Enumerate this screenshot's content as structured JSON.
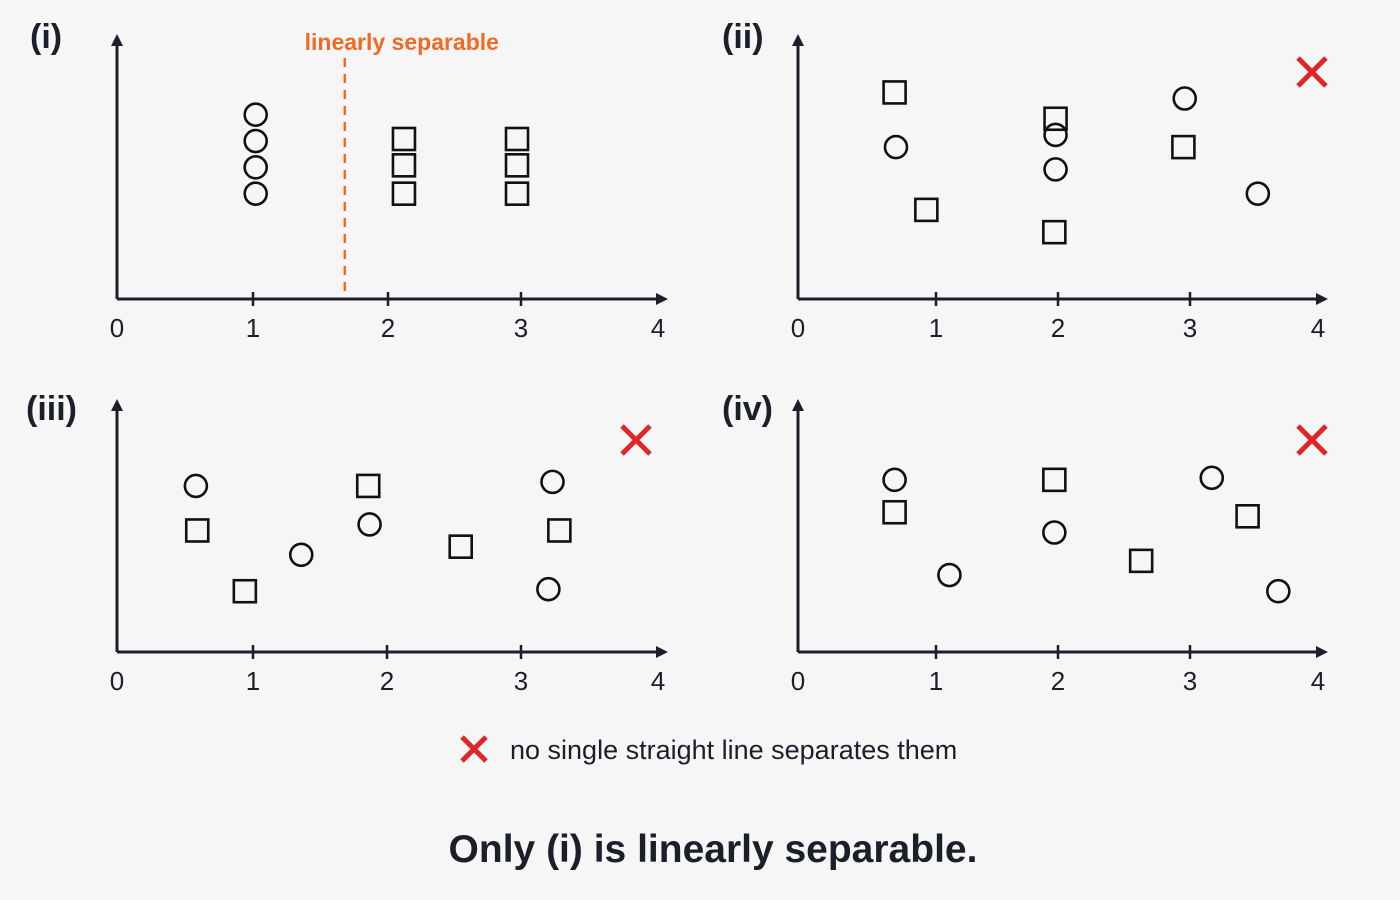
{
  "legend": {
    "symbol": "x-mark",
    "text": "no single straight line separates them"
  },
  "conclusion": "Only (i) is linearly separable.",
  "colors": {
    "axis": "#1b1f2a",
    "separator": "#f06a25",
    "not_separable": "#e0262b"
  },
  "chart_data": [
    {
      "type": "scatter",
      "panel": "(i)",
      "x_ticks": [
        "0",
        "1",
        "2",
        "3",
        "4"
      ],
      "xlim": [
        0,
        4
      ],
      "ylim": [
        0,
        5
      ],
      "separable": true,
      "separator": {
        "x": 1.68,
        "label": "linearly separable"
      },
      "series": [
        {
          "marker": "circle",
          "points": [
            [
              1.02,
              4.6
            ],
            [
              1.02,
              3.95
            ],
            [
              1.02,
              3.3
            ],
            [
              1.02,
              2.65
            ]
          ]
        },
        {
          "marker": "square",
          "points": [
            [
              2.12,
              4.0
            ],
            [
              2.12,
              3.35
            ],
            [
              2.12,
              2.65
            ],
            [
              2.97,
              4.0
            ],
            [
              2.97,
              3.35
            ],
            [
              2.97,
              2.65
            ]
          ]
        }
      ]
    },
    {
      "type": "scatter",
      "panel": "(ii)",
      "x_ticks": [
        "0",
        "1",
        "2",
        "3",
        "4"
      ],
      "xlim": [
        0,
        4
      ],
      "ylim": [
        0,
        5
      ],
      "separable": false,
      "series": [
        {
          "marker": "circle",
          "points": [
            [
              0.71,
              3.8
            ],
            [
              1.98,
              4.1
            ],
            [
              1.98,
              3.25
            ],
            [
              2.96,
              5.0
            ],
            [
              3.53,
              2.65
            ]
          ]
        },
        {
          "marker": "square",
          "points": [
            [
              0.7,
              5.15
            ],
            [
              0.93,
              2.25
            ],
            [
              1.98,
              4.5
            ],
            [
              1.97,
              1.7
            ],
            [
              2.95,
              3.8
            ]
          ]
        }
      ]
    },
    {
      "type": "scatter",
      "panel": "(iii)",
      "x_ticks": [
        "0",
        "1",
        "2",
        "3",
        "4"
      ],
      "xlim": [
        0,
        4
      ],
      "ylim": [
        0,
        5
      ],
      "separable": false,
      "series": [
        {
          "marker": "circle",
          "points": [
            [
              0.58,
              4.15
            ],
            [
              1.36,
              2.45
            ],
            [
              1.87,
              3.2
            ],
            [
              3.23,
              4.25
            ],
            [
              3.2,
              1.6
            ]
          ]
        },
        {
          "marker": "square",
          "points": [
            [
              0.59,
              3.05
            ],
            [
              0.94,
              1.55
            ],
            [
              1.86,
              4.15
            ],
            [
              2.55,
              2.65
            ],
            [
              3.28,
              3.05
            ]
          ]
        }
      ]
    },
    {
      "type": "scatter",
      "panel": "(iv)",
      "x_ticks": [
        "0",
        "1",
        "2",
        "3",
        "4"
      ],
      "xlim": [
        0,
        4
      ],
      "ylim": [
        0,
        5
      ],
      "separable": false,
      "series": [
        {
          "marker": "circle",
          "points": [
            [
              0.7,
              4.3
            ],
            [
              1.11,
              1.95
            ],
            [
              1.97,
              3.0
            ],
            [
              3.17,
              4.35
            ],
            [
              3.69,
              1.55
            ]
          ]
        },
        {
          "marker": "square",
          "points": [
            [
              0.7,
              3.5
            ],
            [
              1.97,
              4.3
            ],
            [
              2.63,
              2.3
            ],
            [
              3.45,
              3.4
            ]
          ]
        }
      ]
    }
  ]
}
